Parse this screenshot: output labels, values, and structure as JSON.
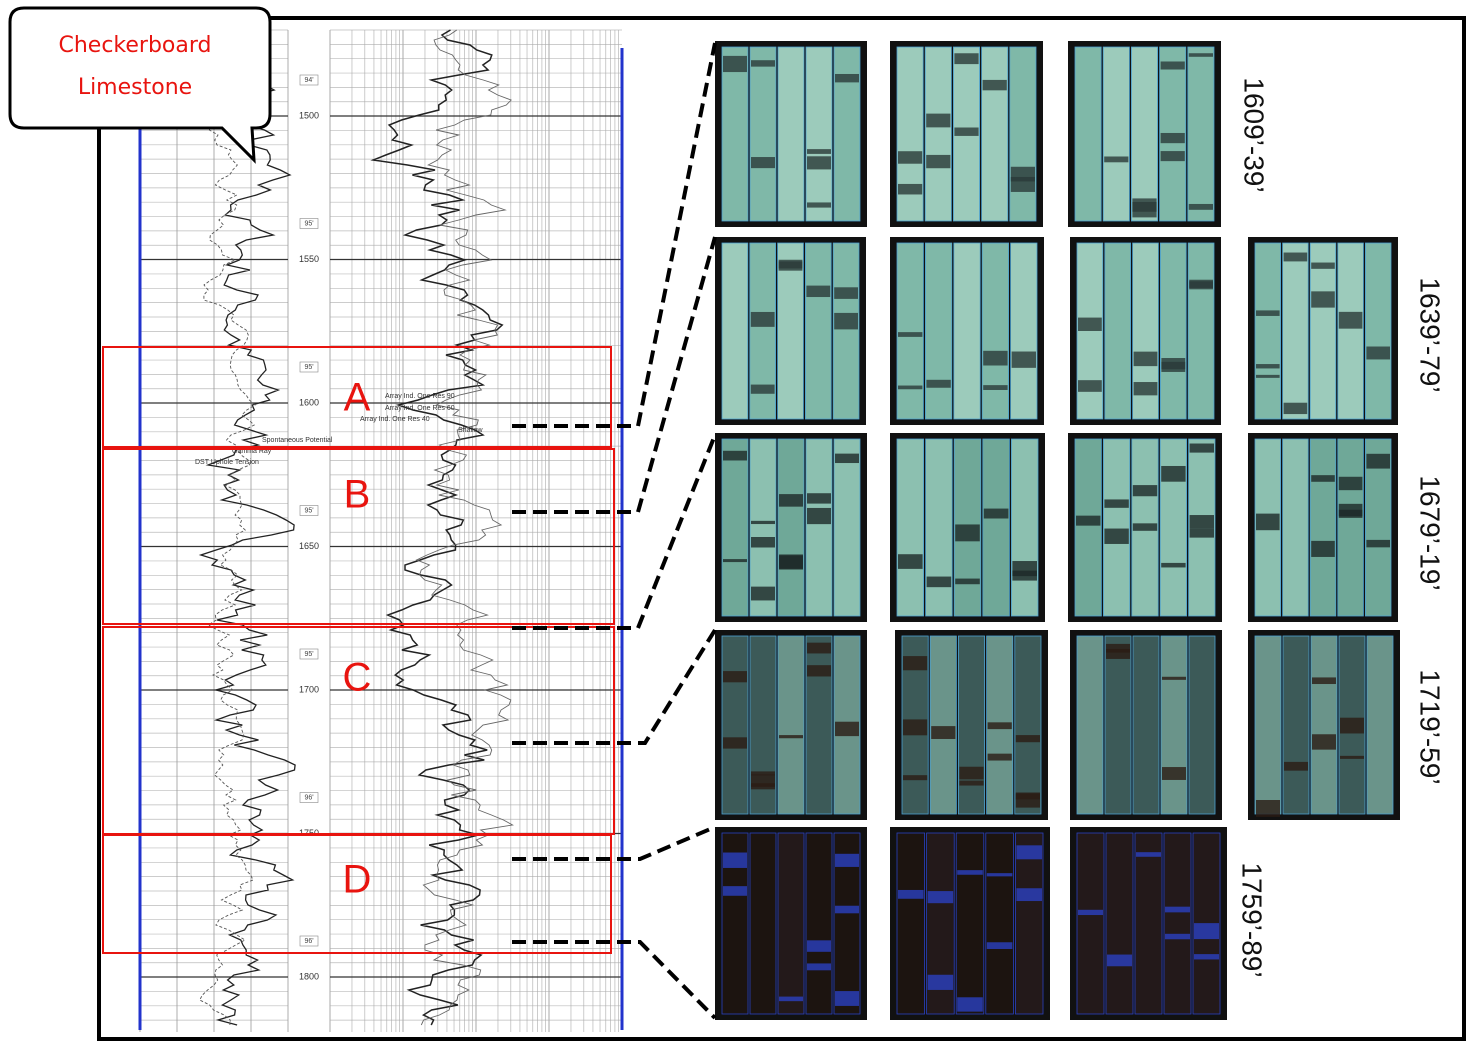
{
  "callout": {
    "lines": [
      "Checkerboard",
      "Limestone"
    ]
  },
  "zones": [
    "A",
    "B",
    "C",
    "D"
  ],
  "core_intervals": [
    "1609’-39’",
    "1639’-79’",
    "1679’-19’",
    "1719’-59’",
    "1759’-89’"
  ],
  "log": {
    "depths": [
      "1500",
      "1550",
      "1600",
      "1650",
      "1700",
      "1750",
      "1800"
    ],
    "markers": [
      "94'",
      "95'",
      "95'",
      "95'",
      "95'",
      "96'",
      "96'"
    ],
    "curve_labels": [
      "Array Ind. One Res 90",
      "Array Ind. One Res 60",
      "Array Ind. One Res 40",
      "Shallow",
      "Spontaneous Potential",
      "Gamma Ray",
      "DST Uphole Tension"
    ]
  }
}
